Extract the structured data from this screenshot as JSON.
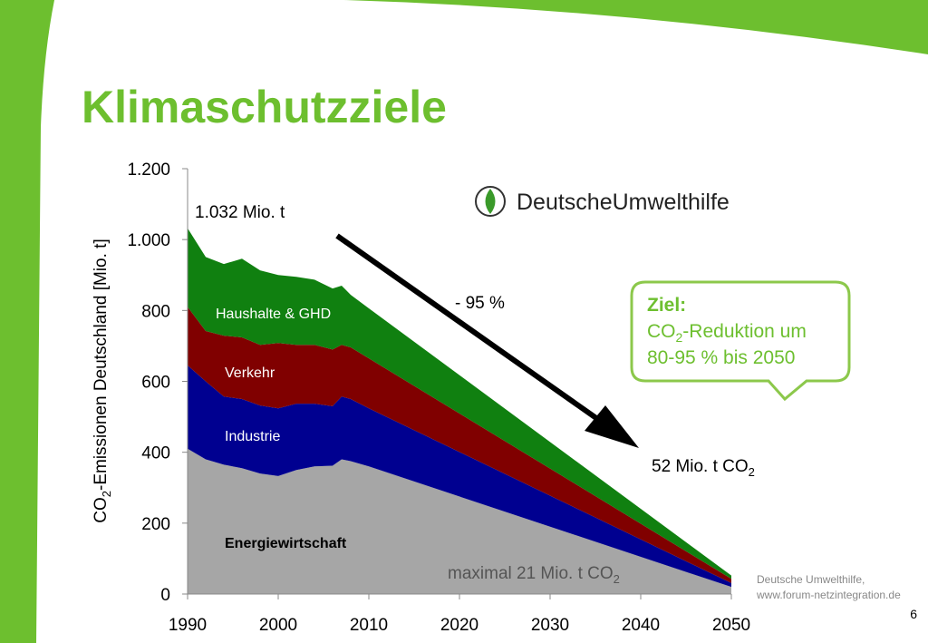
{
  "title": "Klimaschutzziele",
  "logo": "DeutscheUmwelthilfe",
  "source": [
    "Deutsche Umwelthilfe,",
    "www.forum-netzintegration.de"
  ],
  "page_number": "6",
  "chart_data": {
    "type": "stacked-area",
    "y_label": {
      "main": "CO",
      "sub": "2",
      "rest": "-Emissionen Deutschland [Mio. t]"
    },
    "x": [
      1990,
      1992,
      1994,
      1996,
      1998,
      2000,
      2002,
      2004,
      2006,
      2007,
      2008,
      2010,
      2050
    ],
    "series": [
      {
        "name": "Energiewirtschaft",
        "color": "#a6a6a6",
        "values": [
          410,
          380,
          365,
          355,
          340,
          333,
          350,
          360,
          362,
          380,
          375,
          360,
          20
        ]
      },
      {
        "name": "Industrie",
        "color": "#000090",
        "values": [
          235,
          220,
          192,
          195,
          192,
          191,
          187,
          177,
          168,
          177,
          175,
          164,
          11
        ]
      },
      {
        "name": "Verkehr",
        "color": "#800000",
        "values": [
          165,
          142,
          172,
          174,
          171,
          184,
          166,
          166,
          160,
          146,
          146,
          141,
          12
        ]
      },
      {
        "name": "Haushalte & GHD",
        "color": "#108010",
        "values": [
          222,
          209,
          202,
          222,
          210,
          192,
          192,
          184,
          172,
          167,
          148,
          141,
          9
        ]
      }
    ],
    "xlim": [
      1990,
      2050
    ],
    "xticks": [
      1990,
      2000,
      2010,
      2020,
      2030,
      2040,
      2050
    ],
    "ylim": [
      0,
      1200
    ],
    "yticks": [
      0,
      200,
      400,
      600,
      {
        "value": 800,
        "label": "800"
      },
      {
        "value": 1000,
        "label": "1.000"
      },
      {
        "value": 1200,
        "label": "1.200"
      }
    ],
    "annotations": {
      "start": "1.032 Mio. t",
      "reduction": "- 95 %",
      "end": {
        "main": "52 Mio. t CO",
        "sub": "2"
      },
      "max": {
        "main": "maximal 21 Mio. t CO",
        "sub": "2"
      },
      "callout": {
        "head": "Ziel:",
        "line2": {
          "main": "CO",
          "sub": "2",
          "rest": "-Reduktion um"
        },
        "line3": "80-95 % bis 2050"
      }
    }
  }
}
